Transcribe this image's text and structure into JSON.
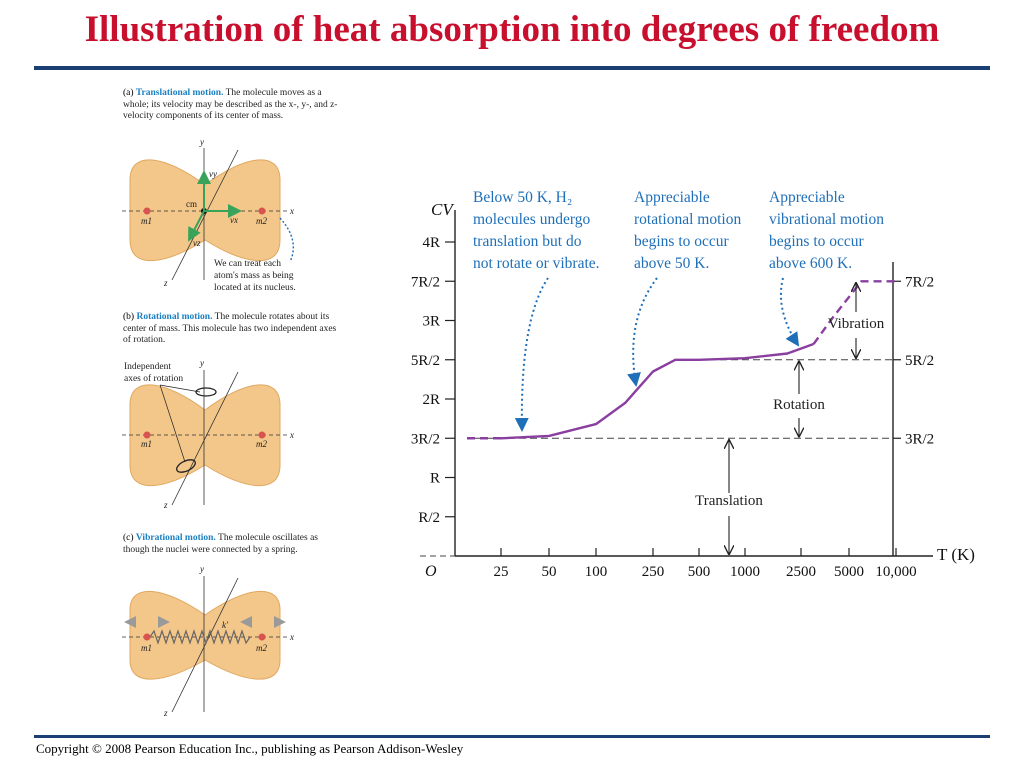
{
  "slide": {
    "title": "Illustration of heat absorption into degrees of freedom",
    "copyright": "Copyright © 2008 Pearson Education Inc., publishing as Pearson Addison-Wesley"
  },
  "panels": {
    "a": {
      "tag": "(a)",
      "heading": "Translational motion.",
      "text": "The molecule moves as a whole; its velocity may be described as the x-, y-, and z-velocity components of its center of mass.",
      "note_lines": [
        "We can treat each",
        "atom's mass as being",
        "located at its nucleus."
      ],
      "labels": {
        "cm": "cm",
        "m1": "m1",
        "m2": "m2",
        "x": "x",
        "y": "y",
        "z": "z",
        "vx": "vx",
        "vy": "vy",
        "vz": "vz"
      }
    },
    "b": {
      "tag": "(b)",
      "heading": "Rotational motion.",
      "text": "The molecule rotates about its center of mass. This molecule has two independent axes of rotation.",
      "axes_label_lines": [
        "Independent",
        "axes of rotation"
      ]
    },
    "c": {
      "tag": "(c)",
      "heading": "Vibrational motion.",
      "text": "The molecule oscillates as though the nuclei were connected by a spring.",
      "spring_label": "k′"
    }
  },
  "annotations": [
    {
      "lines": [
        "Below 50 K, H₂",
        "molecules undergo",
        "translation but do",
        "not rotate or vibrate."
      ]
    },
    {
      "lines": [
        "Appreciable",
        "rotational motion",
        "begins to occur",
        "above 50 K."
      ]
    },
    {
      "lines": [
        "Appreciable",
        "vibrational motion",
        "begins to occur",
        "above 600 K."
      ]
    }
  ],
  "colors": {
    "title": "#c8102e",
    "rule": "#1b3f73",
    "curve": "#8a3fa0",
    "annotation": "#1f6fb8",
    "lead": "#1a7fc1",
    "molecule": "#f3c68a",
    "atom": "#d9534f"
  },
  "chart_data": {
    "type": "line",
    "xlabel": "T (K)",
    "ylabel": "CV",
    "origin_label": "O",
    "x_scale": "log",
    "x_ticks": [
      "25",
      "50",
      "100",
      "250",
      "500",
      "1000",
      "2500",
      "5000",
      "10,000"
    ],
    "y_ticks_left": [
      "4R",
      "7R/2",
      "3R",
      "5R/2",
      "2R",
      "3R/2",
      "R",
      "R/2"
    ],
    "y_ticks_right": [
      "7R/2",
      "5R/2",
      "3R/2"
    ],
    "y_values": [
      4.0,
      3.5,
      3.0,
      2.5,
      2.0,
      1.5,
      1.0,
      0.5
    ],
    "y_unit": "R",
    "series": [
      {
        "points": [
          [
            10,
            1.5
          ],
          [
            25,
            1.5
          ],
          [
            50,
            1.53
          ],
          [
            100,
            1.68
          ],
          [
            160,
            1.95
          ],
          [
            250,
            2.35
          ],
          [
            350,
            2.5
          ],
          [
            500,
            2.5
          ],
          [
            1000,
            2.52
          ],
          [
            2000,
            2.58
          ],
          [
            3000,
            2.7
          ],
          [
            4000,
            3.05
          ],
          [
            6000,
            3.5
          ],
          [
            10000,
            3.5
          ]
        ]
      }
    ],
    "bands": [
      {
        "label": "Translation",
        "from": 0,
        "to": 1.5
      },
      {
        "label": "Rotation",
        "from": 1.5,
        "to": 2.5
      },
      {
        "label": "Vibration",
        "from": 2.5,
        "to": 3.5
      }
    ]
  }
}
